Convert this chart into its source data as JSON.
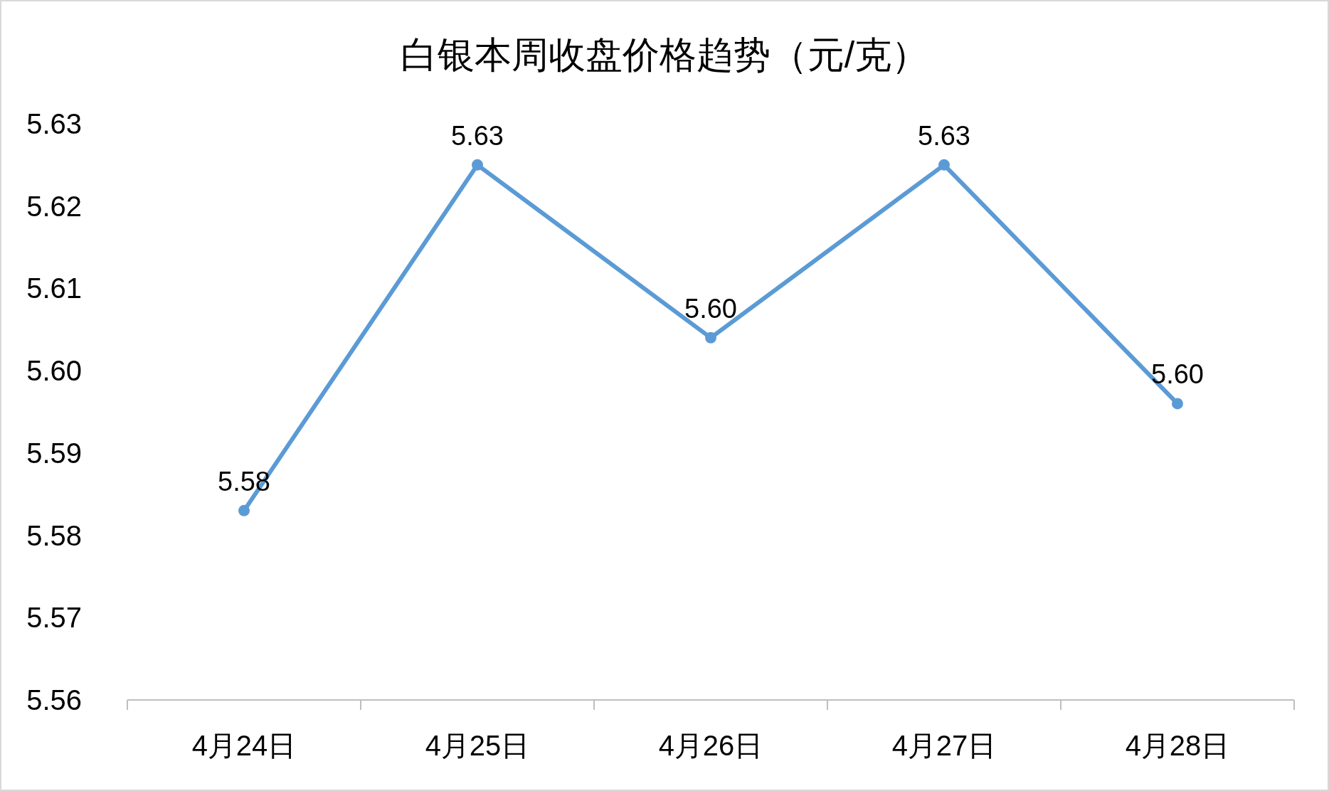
{
  "chart_data": {
    "type": "line",
    "title": "白银本周收盘价格趋势（元/克）",
    "categories": [
      "4月24日",
      "4月25日",
      "4月26日",
      "4月27日",
      "4月28日"
    ],
    "series": [
      {
        "color": "#5b9bd5",
        "values": [
          5.583,
          5.625,
          5.604,
          5.625,
          5.596
        ],
        "value_labels": [
          "5.58",
          "5.63",
          "5.60",
          "5.63",
          "5.60"
        ]
      }
    ],
    "ylim": [
      5.56,
      5.63
    ],
    "yticks": [
      {
        "value": 5.56,
        "label": "5.56"
      },
      {
        "value": 5.57,
        "label": "5.57"
      },
      {
        "value": 5.58,
        "label": "5.58"
      },
      {
        "value": 5.59,
        "label": "5.59"
      },
      {
        "value": 5.6,
        "label": "5.60"
      },
      {
        "value": 5.61,
        "label": "5.61"
      },
      {
        "value": 5.62,
        "label": "5.62"
      },
      {
        "value": 5.63,
        "label": "5.63"
      }
    ],
    "marker": "circle",
    "line_style": "solid"
  }
}
